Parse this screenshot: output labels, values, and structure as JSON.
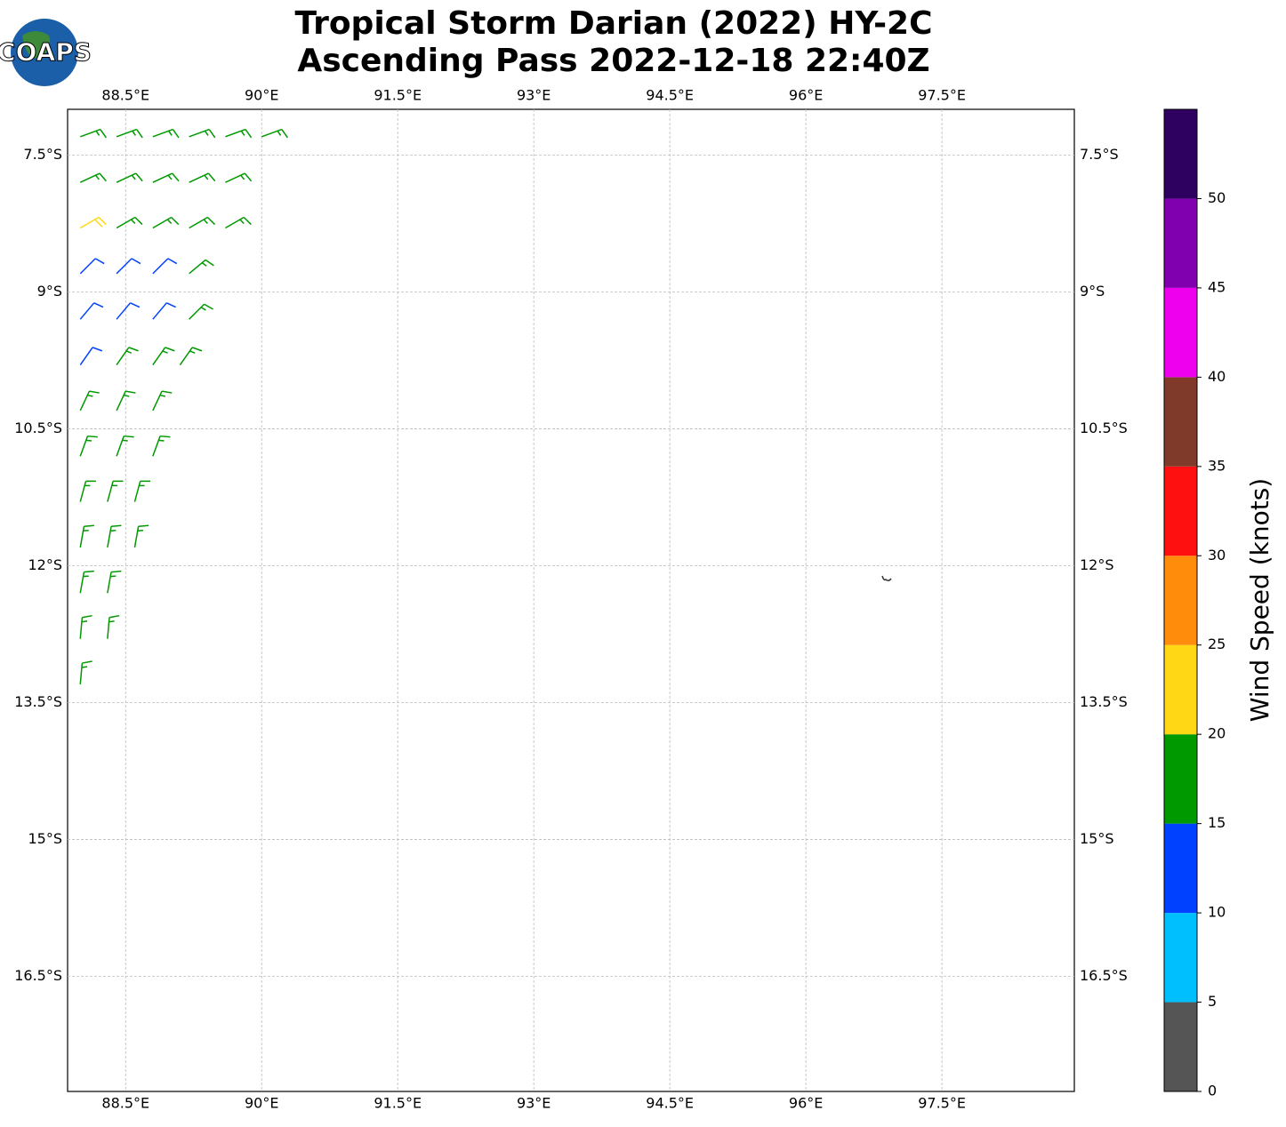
{
  "chart_data": {
    "type": "wind-barbs",
    "title": "Tropical Storm Darian (2022) HY-2C",
    "subtitle": "Ascending Pass 2022-12-18 22:40Z",
    "logo": "COAPS",
    "xlim": [
      87.86,
      98.96
    ],
    "ylim": [
      -17.76,
      -7.0
    ],
    "xticks": [
      {
        "value": 88.5,
        "label": "88.5°E"
      },
      {
        "value": 90,
        "label": "90°E"
      },
      {
        "value": 91.5,
        "label": "91.5°E"
      },
      {
        "value": 93,
        "label": "93°E"
      },
      {
        "value": 94.5,
        "label": "94.5°E"
      },
      {
        "value": 96,
        "label": "96°E"
      },
      {
        "value": 97.5,
        "label": "97.5°E"
      }
    ],
    "yticks": [
      {
        "value": -7.5,
        "label": "7.5°S"
      },
      {
        "value": -9,
        "label": "9°S"
      },
      {
        "value": -10.5,
        "label": "10.5°S"
      },
      {
        "value": -12,
        "label": "12°S"
      },
      {
        "value": -13.5,
        "label": "13.5°S"
      },
      {
        "value": -15,
        "label": "15°S"
      },
      {
        "value": -16.5,
        "label": "16.5°S"
      }
    ],
    "grid": true,
    "barbs": {
      "lon": [
        88.0,
        88.4,
        88.8,
        89.2,
        89.6,
        90.0,
        88.0,
        88.4,
        88.8,
        89.2,
        89.6,
        88.0,
        88.4,
        88.8,
        89.2,
        89.6,
        88.0,
        88.4,
        88.8,
        89.2,
        88.0,
        88.4,
        88.8,
        89.2,
        88.0,
        88.4,
        88.8,
        89.1,
        88.0,
        88.4,
        88.8,
        88.0,
        88.4,
        88.8,
        88.0,
        88.3,
        88.6,
        88.0,
        88.3,
        88.6,
        88.0,
        88.3,
        88.0,
        88.3,
        88.0
      ],
      "lat": [
        -7.3,
        -7.3,
        -7.3,
        -7.3,
        -7.3,
        -7.3,
        -7.8,
        -7.8,
        -7.8,
        -7.8,
        -7.8,
        -8.3,
        -8.3,
        -8.3,
        -8.3,
        -8.3,
        -8.8,
        -8.8,
        -8.8,
        -8.8,
        -9.3,
        -9.3,
        -9.3,
        -9.3,
        -9.8,
        -9.8,
        -9.8,
        -9.8,
        -10.3,
        -10.3,
        -10.3,
        -10.8,
        -10.8,
        -10.8,
        -11.3,
        -11.3,
        -11.3,
        -11.8,
        -11.8,
        -11.8,
        -12.3,
        -12.3,
        -12.8,
        -12.8,
        -13.3
      ],
      "speed": [
        17,
        17,
        17,
        17,
        17,
        17,
        17,
        17,
        17,
        17,
        17,
        22,
        17,
        17,
        17,
        17,
        12,
        12,
        12,
        17,
        12,
        12,
        12,
        17,
        12,
        17,
        17,
        17,
        17,
        17,
        17,
        17,
        17,
        17,
        17,
        17,
        17,
        17,
        17,
        17,
        17,
        17,
        17,
        17,
        17
      ],
      "direction": [
        70,
        70,
        70,
        70,
        70,
        70,
        65,
        65,
        65,
        65,
        65,
        60,
        60,
        60,
        60,
        60,
        45,
        45,
        45,
        50,
        40,
        40,
        40,
        45,
        35,
        35,
        35,
        35,
        25,
        25,
        25,
        20,
        20,
        20,
        15,
        15,
        15,
        10,
        10,
        10,
        10,
        10,
        5,
        5,
        5
      ]
    },
    "colorbar": {
      "label": "Wind Speed (knots)",
      "lim": [
        0,
        55
      ],
      "levels": [
        0,
        5,
        10,
        15,
        20,
        25,
        30,
        35,
        40,
        45,
        50,
        55
      ],
      "colors": [
        "#555555",
        "#00bfff",
        "#0040ff",
        "#009900",
        "#ffd714",
        "#ff8c0a",
        "#ff1010",
        "#803a2a",
        "#ee00ee",
        "#8000b0",
        "#2e0060"
      ],
      "ticks": [
        0,
        5,
        10,
        15,
        20,
        25,
        30,
        35,
        40,
        45,
        50
      ]
    }
  }
}
